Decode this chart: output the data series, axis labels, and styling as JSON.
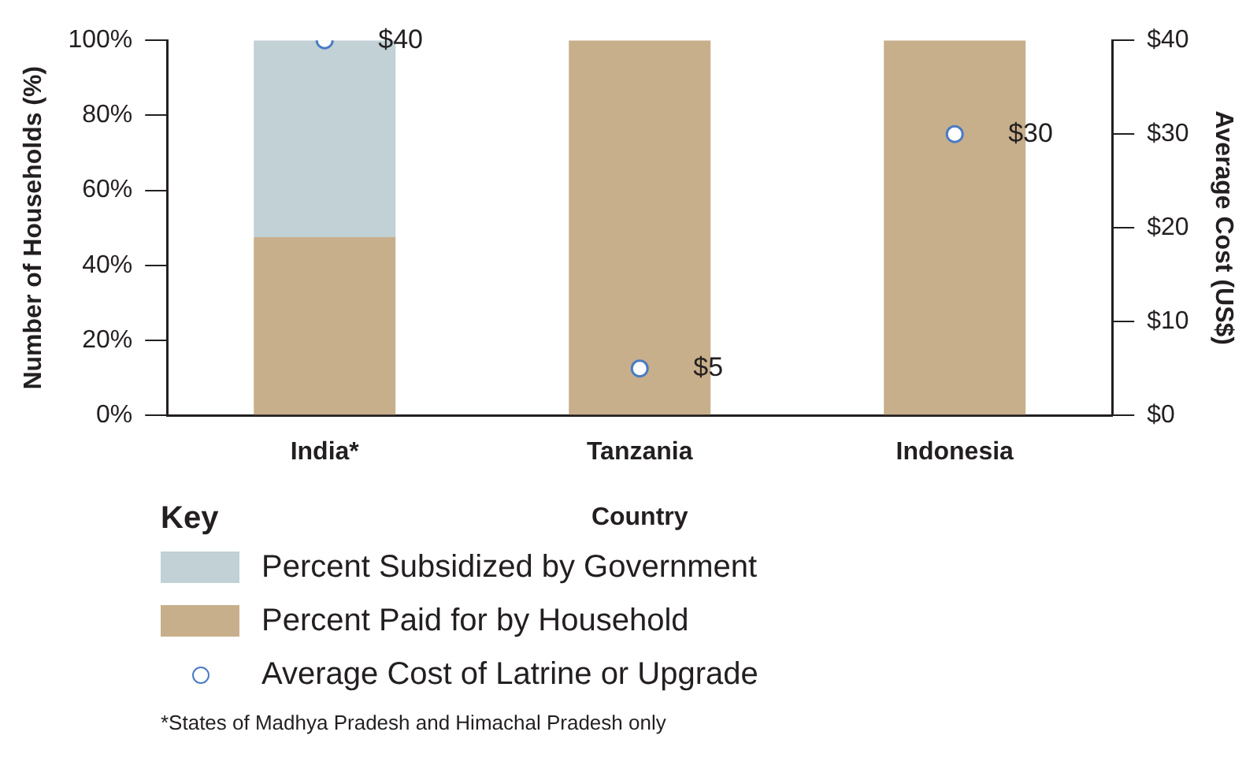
{
  "chart_data": {
    "type": "bar",
    "stacked": true,
    "xlabel": "Country",
    "ylabel": "Number of Households (%)",
    "y2label": "Average Cost (US$)",
    "legend_title": "Key",
    "legend": "bottom left",
    "categories": [
      "India*",
      "Tanzania",
      "Indonesia"
    ],
    "series": [
      {
        "name": "Percent Paid for by Household",
        "color": "#c8af8b",
        "values": [
          47.5,
          100,
          100
        ]
      },
      {
        "name": "Percent Subsidized by Government",
        "color": "#c1d1d5",
        "values": [
          52.5,
          0,
          0
        ]
      },
      {
        "name": "Average Cost of Latrine or Upgrade",
        "type": "scatter",
        "axis": "y2",
        "marker": "circle",
        "color": "#4a7cc4",
        "x": [
          "India*",
          "Tanzania",
          "Indonesia"
        ],
        "values": [
          40,
          5,
          30
        ],
        "value_labels": [
          "$40",
          "$5",
          "$30"
        ]
      }
    ],
    "ylim": [
      0,
      100
    ],
    "yticks": [
      {
        "value": 0,
        "label": "0%"
      },
      {
        "value": 20,
        "label": "20%"
      },
      {
        "value": 40,
        "label": "40%"
      },
      {
        "value": 60,
        "label": "60%"
      },
      {
        "value": 80,
        "label": "80%"
      },
      {
        "value": 100,
        "label": "100%"
      }
    ],
    "y2lim": [
      0,
      40
    ],
    "y2ticks": [
      {
        "value": 0,
        "label": "$0"
      },
      {
        "value": 10,
        "label": "$10"
      },
      {
        "value": 20,
        "label": "$20"
      },
      {
        "value": 30,
        "label": "$30"
      },
      {
        "value": 40,
        "label": "$40"
      }
    ],
    "grid": false,
    "annotations": [
      "*States of Madhya Pradesh and Himachal Pradesh only"
    ]
  }
}
